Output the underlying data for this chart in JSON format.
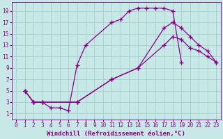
{
  "background_color": "#c8e8e8",
  "grid_color": "#a8d0d0",
  "line_color": "#880088",
  "xlabel": "Windchill (Refroidissement éolien,°C)",
  "xlabel_fontsize": 6.5,
  "tick_fontsize": 5.5,
  "xlim": [
    -0.5,
    23.5
  ],
  "ylim": [
    0,
    20.5
  ],
  "xticks": [
    0,
    1,
    2,
    3,
    4,
    5,
    6,
    7,
    8,
    9,
    10,
    11,
    12,
    13,
    14,
    15,
    16,
    17,
    18,
    19,
    20,
    21,
    22,
    23
  ],
  "yticks": [
    1,
    3,
    5,
    7,
    9,
    11,
    13,
    15,
    17,
    19
  ],
  "curve1_x": [
    1,
    2,
    3,
    4,
    5,
    6,
    7,
    8,
    11,
    12,
    13,
    14,
    15,
    16,
    17,
    18,
    19
  ],
  "curve1_y": [
    5,
    3,
    3,
    2,
    2,
    1.5,
    9.5,
    13,
    17,
    17.5,
    19,
    19.5,
    19.5,
    19.5,
    19.5,
    19,
    10
  ],
  "curve2_x": [
    1,
    2,
    3,
    7,
    11,
    14,
    17,
    18,
    19,
    20,
    21,
    22,
    23
  ],
  "curve2_y": [
    5,
    3,
    3,
    3,
    7,
    9,
    13,
    14.5,
    14,
    12.5,
    12,
    11,
    10
  ],
  "curve3_x": [
    1,
    2,
    3,
    7,
    11,
    14,
    17,
    18,
    19,
    20,
    21,
    22,
    23
  ],
  "curve3_y": [
    5,
    3,
    3,
    3,
    7,
    9,
    16,
    17,
    16,
    14.5,
    13,
    12,
    10
  ]
}
